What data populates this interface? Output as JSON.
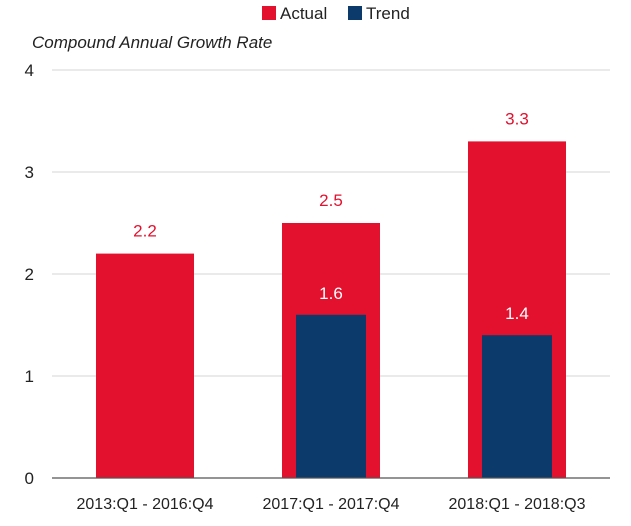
{
  "chart_data": {
    "type": "bar",
    "title": "",
    "ylabel": "Compound Annual Growth Rate",
    "xlabel": "",
    "categories": [
      "2013:Q1 - 2016:Q4",
      "2017:Q1 - 2017:Q4",
      "2018:Q1 - 2018:Q3"
    ],
    "series": [
      {
        "name": "Actual",
        "values": [
          2.2,
          2.5,
          3.3
        ],
        "color": "#e3102e",
        "labels": [
          "2.2",
          "2.5",
          "3.3"
        ],
        "label_color": "#e3102e"
      },
      {
        "name": "Trend",
        "values": [
          null,
          1.6,
          1.4
        ],
        "color": "#0b3a6b",
        "labels": [
          "",
          "1.6",
          "1.4"
        ],
        "label_color": "#ffffff"
      }
    ],
    "ylim": [
      0,
      4
    ],
    "yticks": [
      "0",
      "1",
      "2",
      "3",
      "4"
    ],
    "grid": true,
    "legend": "top-center",
    "overlapping_bars": true
  }
}
